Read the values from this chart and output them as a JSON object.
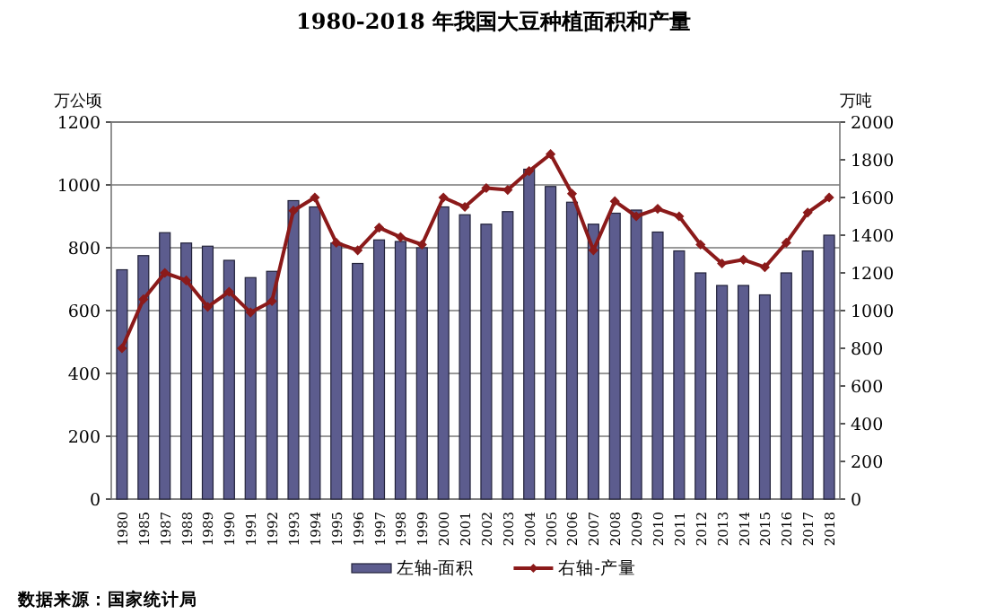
{
  "chart_data": {
    "type": "bar",
    "title": "1980-2018 年我国大豆种植面积和产量",
    "ylabel": "万公顷",
    "y2label": "万吨",
    "categories": [
      "1980",
      "1985",
      "1987",
      "1988",
      "1989",
      "1990",
      "1991",
      "1992",
      "1993",
      "1994",
      "1995",
      "1996",
      "1997",
      "1998",
      "1999",
      "2000",
      "2001",
      "2002",
      "2003",
      "2004",
      "2005",
      "2006",
      "2007",
      "2008",
      "2009",
      "2010",
      "2011",
      "2012",
      "2013",
      "2014",
      "2015",
      "2016",
      "2017",
      "2018"
    ],
    "series": [
      {
        "name": "左轴-面积",
        "color": "#5c5c8e",
        "values": [
          730,
          775,
          848,
          815,
          805,
          760,
          705,
          725,
          950,
          930,
          815,
          750,
          825,
          820,
          800,
          930,
          905,
          875,
          915,
          1050,
          995,
          945,
          875,
          910,
          920,
          850,
          790,
          720,
          680,
          680,
          650,
          720,
          790,
          840
        ]
      },
      {
        "name": "右轴-产量",
        "type": "line",
        "axis": "y2",
        "color": "#8b1a1a",
        "marker": "diamond",
        "values": [
          800,
          1060,
          1200,
          1160,
          1020,
          1100,
          990,
          1050,
          1530,
          1600,
          1360,
          1320,
          1440,
          1390,
          1350,
          1600,
          1550,
          1650,
          1640,
          1740,
          1830,
          1620,
          1320,
          1580,
          1500,
          1540,
          1500,
          1350,
          1250,
          1270,
          1230,
          1360,
          1520,
          1600
        ]
      }
    ],
    "ylim": [
      0,
      1200
    ],
    "yticks": [
      0,
      200,
      400,
      600,
      800,
      1000,
      1200
    ],
    "y2lim": [
      0,
      2000
    ],
    "y2ticks": [
      0,
      200,
      400,
      600,
      800,
      1000,
      1200,
      1400,
      1600,
      1800,
      2000
    ],
    "grid": "y",
    "legend": "bottom",
    "annotations": [
      "数据来源：国家统计局"
    ]
  }
}
